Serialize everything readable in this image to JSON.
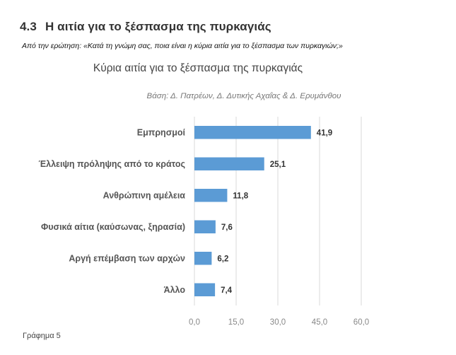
{
  "section": {
    "number": "4.3",
    "title": "Η αιτία για το ξέσπασμα της πυρκαγιάς"
  },
  "question": "Από την ερώτηση: «Κατά τη γνώμη σας, ποια είναι η κύρια αιτία για το ξέσπασμα των πυρκαγιών;»",
  "figure_caption": "Γράφημα 5",
  "colors": {
    "bar": "#5b9bd5",
    "grid": "#d9d9d9"
  },
  "chart_data": {
    "type": "bar",
    "orientation": "horizontal",
    "title": "Κύρια αιτία για το ξέσπασμα της πυρκαγιάς",
    "subtitle": "Βάση:  Δ. Πατρέων, Δ. Δυτικής Αχαΐας & Δ. Ερυμάνθου",
    "categories": [
      "Εμπρησμοί",
      "Έλλειψη πρόληψης από το κράτος",
      "Ανθρώπινη αμέλεια",
      "Φυσικά αίτια (καύσωνας, ξηρασία)",
      "Αργή επέμβαση των αρχών",
      "Άλλο"
    ],
    "values": [
      41.9,
      25.1,
      11.8,
      7.6,
      6.2,
      7.4
    ],
    "value_labels": [
      "41,9",
      "25,1",
      "11,8",
      "7,6",
      "6,2",
      "7,4"
    ],
    "xlim": [
      0,
      60
    ],
    "ticks": [
      0,
      15,
      30,
      45,
      60
    ],
    "tick_labels": [
      "0,0",
      "15,0",
      "30,0",
      "45,0",
      "60,0"
    ],
    "grid": true,
    "legend": "none"
  }
}
